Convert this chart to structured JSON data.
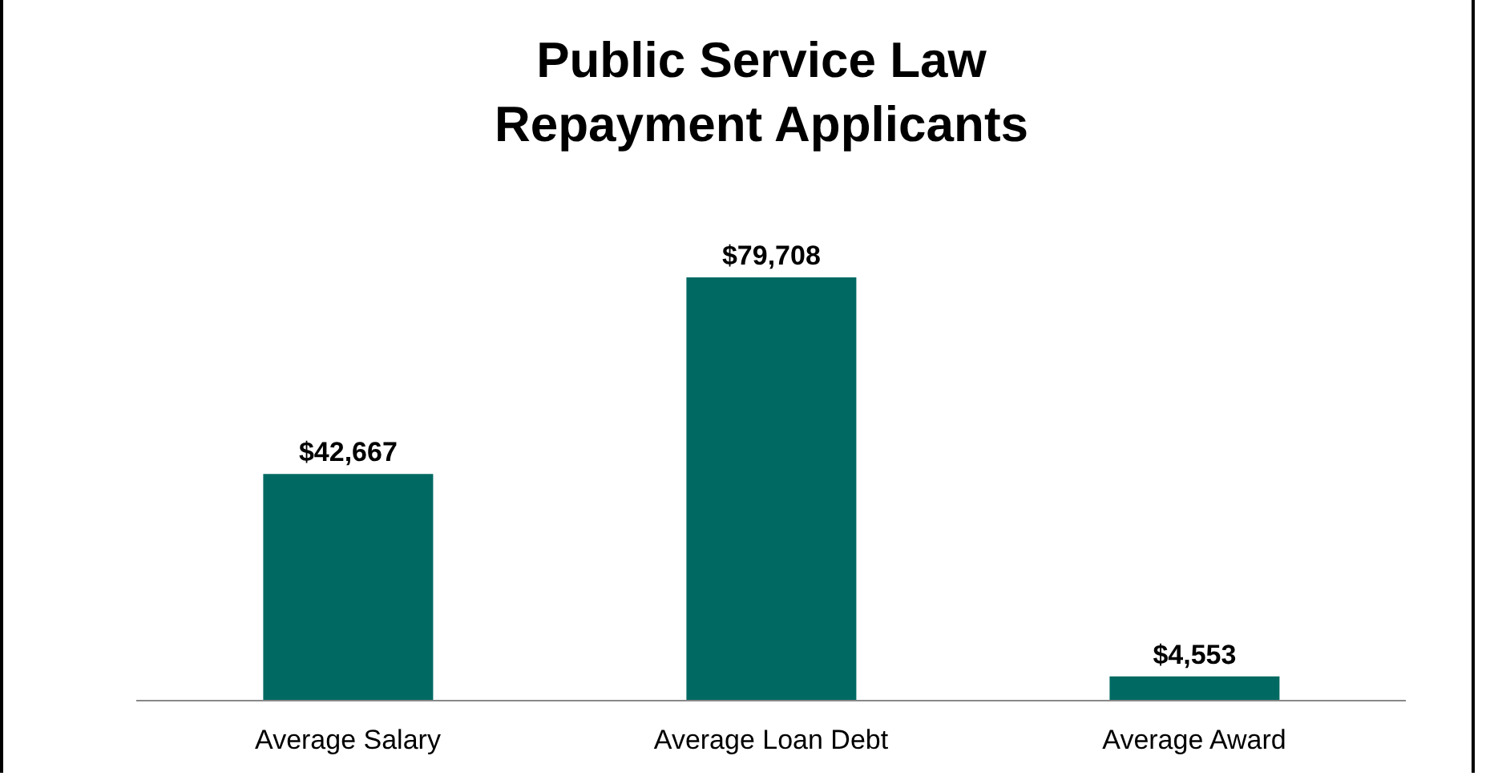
{
  "chart_data": {
    "type": "bar",
    "title": "Public Service Law Repayment Applicants",
    "categories": [
      "Average Salary",
      "Average  Loan Debt",
      "Average Award"
    ],
    "values": [
      42667,
      79708,
      4553
    ],
    "value_labels": [
      "$42,667",
      "$79,708",
      "$4,553"
    ],
    "color": "#006a62",
    "grid": false,
    "legend": false
  }
}
